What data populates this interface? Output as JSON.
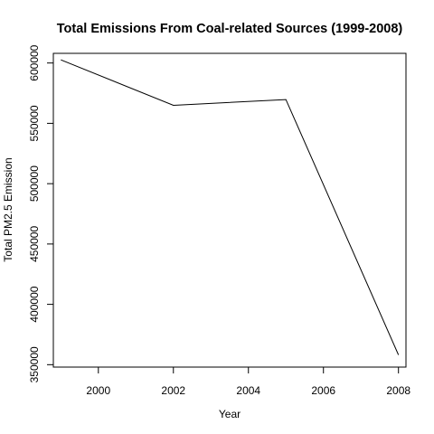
{
  "chart_data": {
    "type": "line",
    "title": "Total Emissions From Coal-related Sources (1999-2008)",
    "xlabel": "Year",
    "ylabel": "Total PM2.5 Emission",
    "xlim": [
      1998.8,
      2008.2
    ],
    "ylim": [
      348000,
      608000
    ],
    "x_ticks": [
      2000,
      2002,
      2004,
      2006,
      2008
    ],
    "y_ticks": [
      350000,
      400000,
      450000,
      500000,
      550000,
      600000
    ],
    "x_tick_labels": [
      "2000",
      "2002",
      "2004",
      "2006",
      "2008"
    ],
    "y_tick_labels": [
      "350000",
      "400000",
      "450000",
      "500000",
      "550000",
      "600000"
    ],
    "grid": false,
    "series": [
      {
        "color": "#000000",
        "x": [
          1999,
          2002,
          2005,
          2008
        ],
        "y": [
          602600,
          564900,
          569700,
          358100
        ]
      }
    ]
  }
}
